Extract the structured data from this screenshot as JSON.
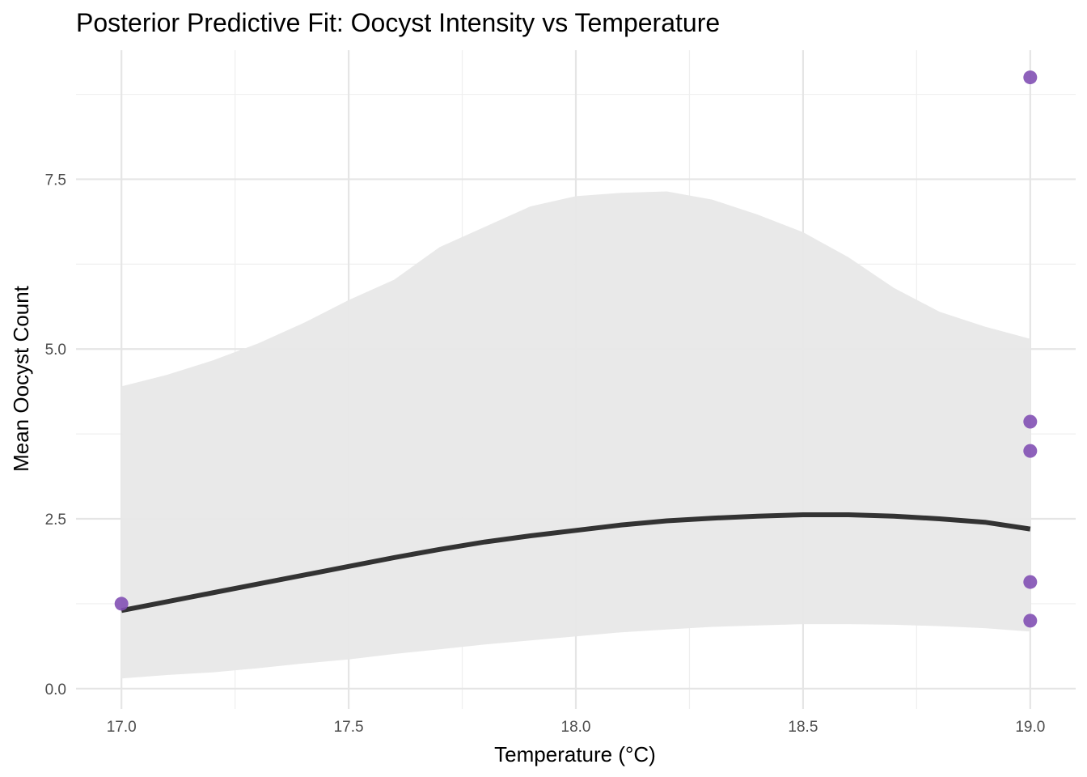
{
  "chart_data": {
    "type": "line",
    "title": "Posterior Predictive Fit: Oocyst Intensity vs Temperature",
    "xlabel": "Temperature (°C)",
    "ylabel": "Mean Oocyst Count",
    "xlim": [
      16.9,
      19.1
    ],
    "ylim": [
      -0.3,
      9.4
    ],
    "x_ticks": [
      17.0,
      17.5,
      18.0,
      18.5,
      19.0
    ],
    "x_tick_labels": [
      "17.0",
      "17.5",
      "18.0",
      "18.5",
      "19.0"
    ],
    "y_ticks": [
      0.0,
      2.5,
      5.0,
      7.5
    ],
    "y_tick_labels": [
      "0.0",
      "2.5",
      "5.0",
      "7.5"
    ],
    "grid": true,
    "legend": "none",
    "x": [
      17.0,
      17.1,
      17.2,
      17.3,
      17.4,
      17.5,
      17.6,
      17.7,
      17.8,
      17.9,
      18.0,
      18.1,
      18.2,
      18.3,
      18.4,
      18.5,
      18.6,
      18.7,
      18.8,
      18.9,
      19.0
    ],
    "series": [
      {
        "values": [
          1.15,
          1.28,
          1.41,
          1.54,
          1.67,
          1.8,
          1.93,
          2.05,
          2.16,
          2.25,
          2.33,
          2.41,
          2.47,
          2.51,
          2.54,
          2.56,
          2.56,
          2.54,
          2.5,
          2.45,
          2.35
        ],
        "color": "#333333"
      }
    ],
    "ribbon": {
      "lower": [
        0.15,
        0.2,
        0.24,
        0.3,
        0.37,
        0.43,
        0.51,
        0.58,
        0.65,
        0.71,
        0.77,
        0.83,
        0.87,
        0.91,
        0.93,
        0.95,
        0.95,
        0.94,
        0.92,
        0.89,
        0.84
      ],
      "upper": [
        4.45,
        4.62,
        4.83,
        5.08,
        5.38,
        5.72,
        6.02,
        6.5,
        6.8,
        7.1,
        7.25,
        7.3,
        7.32,
        7.2,
        6.98,
        6.72,
        6.35,
        5.9,
        5.55,
        5.33,
        5.15
      ],
      "color": "#e8e8e8"
    },
    "points": {
      "x": [
        17.0,
        19.0,
        19.0,
        19.0,
        19.0,
        19.0
      ],
      "y": [
        1.25,
        9.0,
        3.93,
        3.5,
        1.57,
        1.0
      ],
      "color": "#8250b4"
    }
  }
}
